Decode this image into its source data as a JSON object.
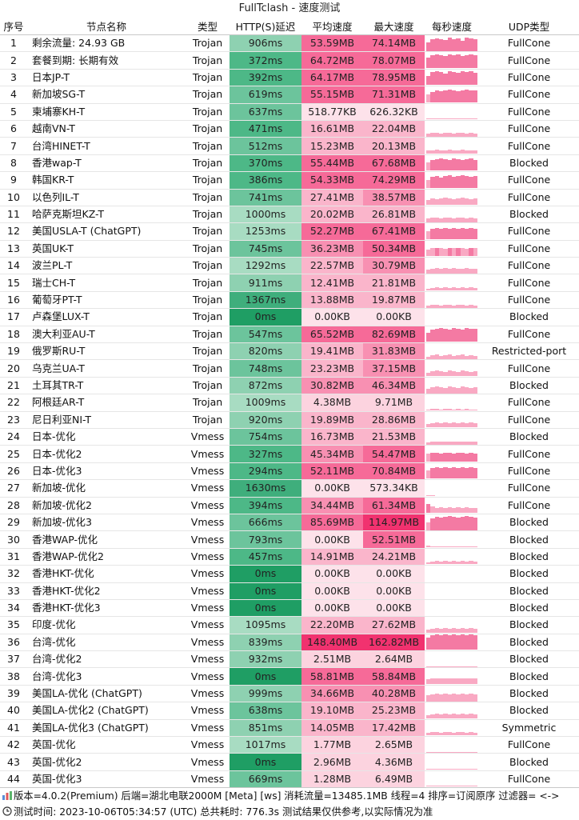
{
  "title": "FullTclash - 速度测试",
  "headers": {
    "idx": "序号",
    "name": "节点名称",
    "type": "类型",
    "delay": "HTTP(S)延迟",
    "avg": "平均速度",
    "max": "最大速度",
    "chart": "每秒速度",
    "udp": "UDP类型"
  },
  "rows": [
    {
      "idx": "1",
      "name": "剩余流量: 24.93 GB",
      "type": "Trojan",
      "delay": "906ms",
      "avg": "53.59MB",
      "max": "74.14MB",
      "udp": "FullCone",
      "spark": [
        0.6,
        0.8,
        0.85,
        0.8,
        0.75,
        0.9,
        0.8,
        0.85,
        0.7,
        0.9,
        0.85,
        0.8
      ]
    },
    {
      "idx": "2",
      "name": "套餐到期: 长期有效",
      "type": "Trojan",
      "delay": "372ms",
      "avg": "64.72MB",
      "max": "78.07MB",
      "udp": "FullCone",
      "spark": [
        0.7,
        0.85,
        0.9,
        0.85,
        0.8,
        0.9,
        0.85,
        0.9,
        0.8,
        0.85,
        0.9,
        0.85
      ]
    },
    {
      "idx": "3",
      "name": "日本JP-T",
      "type": "Trojan",
      "delay": "392ms",
      "avg": "64.17MB",
      "max": "78.95MB",
      "udp": "FullCone",
      "spark": [
        0.6,
        0.85,
        0.9,
        0.85,
        0.75,
        0.9,
        0.85,
        0.8,
        0.9,
        0.85,
        0.9,
        0.8
      ]
    },
    {
      "idx": "4",
      "name": "新加坡SG-T",
      "type": "Trojan",
      "delay": "619ms",
      "avg": "55.15MB",
      "max": "71.31MB",
      "udp": "FullCone",
      "spark": [
        0.5,
        0.7,
        0.8,
        0.75,
        0.8,
        0.85,
        0.8,
        0.75,
        0.8,
        0.85,
        0.8,
        0.8
      ]
    },
    {
      "idx": "5",
      "name": "柬埔寨KH-T",
      "type": "Trojan",
      "delay": "637ms",
      "avg": "518.77KB",
      "max": "626.32KB",
      "udp": "FullCone",
      "spark": [
        0.05,
        0.05,
        0.05,
        0.05,
        0.05,
        0.05,
        0.05,
        0.05,
        0.05,
        0.05,
        0.05,
        0.05
      ]
    },
    {
      "idx": "6",
      "name": "越南VN-T",
      "type": "Trojan",
      "delay": "471ms",
      "avg": "16.61MB",
      "max": "22.04MB",
      "udp": "FullCone",
      "spark": [
        0.2,
        0.25,
        0.25,
        0.2,
        0.25,
        0.25,
        0.2,
        0.25,
        0.25,
        0.2,
        0.25,
        0.2
      ]
    },
    {
      "idx": "7",
      "name": "台湾HINET-T",
      "type": "Trojan",
      "delay": "512ms",
      "avg": "15.23MB",
      "max": "20.13MB",
      "udp": "FullCone",
      "spark": [
        0.2,
        0.2,
        0.25,
        0.2,
        0.2,
        0.25,
        0.2,
        0.2,
        0.25,
        0.2,
        0.2,
        0.2
      ]
    },
    {
      "idx": "8",
      "name": "香港wap-T",
      "type": "Trojan",
      "delay": "370ms",
      "avg": "55.44MB",
      "max": "67.68MB",
      "udp": "Blocked",
      "spark": [
        0.5,
        0.7,
        0.75,
        0.8,
        0.75,
        0.7,
        0.8,
        0.75,
        0.7,
        0.75,
        0.8,
        0.7
      ]
    },
    {
      "idx": "9",
      "name": "韩国KR-T",
      "type": "Trojan",
      "delay": "386ms",
      "avg": "54.33MB",
      "max": "74.29MB",
      "udp": "FullCone",
      "spark": [
        0.5,
        0.75,
        0.8,
        0.7,
        0.8,
        0.85,
        0.75,
        0.8,
        0.85,
        0.8,
        0.75,
        0.8
      ]
    },
    {
      "idx": "10",
      "name": "以色列IL-T",
      "type": "Trojan",
      "delay": "741ms",
      "avg": "27.41MB",
      "max": "38.57MB",
      "udp": "FullCone",
      "spark": [
        0.3,
        0.4,
        0.35,
        0.4,
        0.45,
        0.4,
        0.35,
        0.4,
        0.45,
        0.4,
        0.35,
        0.4
      ]
    },
    {
      "idx": "11",
      "name": "哈萨克斯坦KZ-T",
      "type": "Trojan",
      "delay": "1000ms",
      "avg": "20.02MB",
      "max": "26.81MB",
      "udp": "Blocked",
      "spark": [
        0.25,
        0.3,
        0.3,
        0.25,
        0.3,
        0.3,
        0.25,
        0.3,
        0.3,
        0.25,
        0.3,
        0.25
      ]
    },
    {
      "idx": "12",
      "name": "美国USLA-T (ChatGPT)",
      "type": "Trojan",
      "delay": "1253ms",
      "avg": "52.27MB",
      "max": "67.41MB",
      "udp": "FullCone",
      "spark": [
        0.5,
        0.7,
        0.75,
        0.7,
        0.75,
        0.7,
        0.75,
        0.7,
        0.75,
        0.7,
        0.75,
        0.7
      ]
    },
    {
      "idx": "13",
      "name": "英国UK-T",
      "type": "Trojan",
      "delay": "745ms",
      "avg": "36.23MB",
      "max": "50.34MB",
      "udp": "FullCone",
      "spark": [
        0.4,
        0.5,
        0.55,
        0.5,
        0.45,
        0.55,
        0.5,
        0.55,
        0.5,
        0.45,
        0.55,
        0.5
      ]
    },
    {
      "idx": "14",
      "name": "波兰PL-T",
      "type": "Trojan",
      "delay": "1292ms",
      "avg": "22.57MB",
      "max": "30.79MB",
      "udp": "FullCone",
      "spark": [
        0.25,
        0.3,
        0.35,
        0.3,
        0.35,
        0.3,
        0.35,
        0.3,
        0.3,
        0.35,
        0.3,
        0.3
      ]
    },
    {
      "idx": "15",
      "name": "瑞士CH-T",
      "type": "Trojan",
      "delay": "911ms",
      "avg": "12.41MB",
      "max": "21.81MB",
      "udp": "FullCone",
      "spark": [
        0.1,
        0.15,
        0.2,
        0.15,
        0.2,
        0.15,
        0.2,
        0.15,
        0.2,
        0.15,
        0.2,
        0.15
      ]
    },
    {
      "idx": "16",
      "name": "葡萄牙PT-T",
      "type": "Trojan",
      "delay": "1367ms",
      "avg": "13.88MB",
      "max": "19.87MB",
      "udp": "FullCone",
      "spark": [
        0.15,
        0.2,
        0.2,
        0.15,
        0.2,
        0.2,
        0.15,
        0.2,
        0.2,
        0.15,
        0.2,
        0.15
      ]
    },
    {
      "idx": "17",
      "name": "卢森堡LUX-T",
      "type": "Trojan",
      "delay": "0ms",
      "avg": "0.00KB",
      "max": "0.00KB",
      "udp": "Blocked",
      "spark": []
    },
    {
      "idx": "18",
      "name": "澳大利亚AU-T",
      "type": "Trojan",
      "delay": "547ms",
      "avg": "65.52MB",
      "max": "82.69MB",
      "udp": "FullCone",
      "spark": [
        0.6,
        0.8,
        0.85,
        0.9,
        0.85,
        0.8,
        0.9,
        0.85,
        0.8,
        0.9,
        0.85,
        0.85
      ]
    },
    {
      "idx": "19",
      "name": "俄罗斯RU-T",
      "type": "Trojan",
      "delay": "820ms",
      "avg": "19.41MB",
      "max": "31.83MB",
      "udp": "Restricted-port",
      "spark": [
        0.15,
        0.25,
        0.3,
        0.2,
        0.25,
        0.3,
        0.2,
        0.25,
        0.3,
        0.2,
        0.25,
        0.2
      ]
    },
    {
      "idx": "20",
      "name": "乌克兰UA-T",
      "type": "Trojan",
      "delay": "748ms",
      "avg": "23.23MB",
      "max": "37.15MB",
      "udp": "FullCone",
      "spark": [
        0.2,
        0.3,
        0.35,
        0.3,
        0.25,
        0.35,
        0.3,
        0.25,
        0.35,
        0.3,
        0.25,
        0.3
      ]
    },
    {
      "idx": "21",
      "name": "土耳其TR-T",
      "type": "Trojan",
      "delay": "872ms",
      "avg": "30.82MB",
      "max": "46.34MB",
      "udp": "Blocked",
      "spark": [
        0.3,
        0.4,
        0.45,
        0.4,
        0.35,
        0.45,
        0.4,
        0.35,
        0.45,
        0.4,
        0.35,
        0.4
      ]
    },
    {
      "idx": "22",
      "name": "阿根廷AR-T",
      "type": "Trojan",
      "delay": "1009ms",
      "avg": "4.38MB",
      "max": "9.71MB",
      "udp": "FullCone",
      "spark": [
        0.05,
        0.08,
        0.1,
        0.06,
        0.08,
        0.1,
        0.06,
        0.08,
        0.05,
        0.08,
        0.06,
        0.05
      ]
    },
    {
      "idx": "23",
      "name": "尼日利亚NI-T",
      "type": "Trojan",
      "delay": "920ms",
      "avg": "19.89MB",
      "max": "28.86MB",
      "udp": "FullCone",
      "spark": [
        0.2,
        0.25,
        0.3,
        0.25,
        0.3,
        0.25,
        0.3,
        0.25,
        0.3,
        0.25,
        0.3,
        0.25
      ]
    },
    {
      "idx": "24",
      "name": "日本-优化",
      "type": "Vmess",
      "delay": "754ms",
      "avg": "16.73MB",
      "max": "21.53MB",
      "udp": "Blocked",
      "spark": [
        0.15,
        0.2,
        0.2,
        0.2,
        0.2,
        0.2,
        0.2,
        0.2,
        0.2,
        0.2,
        0.2,
        0.2
      ]
    },
    {
      "idx": "25",
      "name": "日本-优化2",
      "type": "Vmess",
      "delay": "327ms",
      "avg": "45.34MB",
      "max": "54.47MB",
      "udp": "FullCone",
      "spark": [
        0.5,
        0.6,
        0.6,
        0.55,
        0.6,
        0.6,
        0.55,
        0.6,
        0.6,
        0.55,
        0.6,
        0.55
      ]
    },
    {
      "idx": "26",
      "name": "日本-优化3",
      "type": "Vmess",
      "delay": "294ms",
      "avg": "52.11MB",
      "max": "70.84MB",
      "udp": "FullCone",
      "spark": [
        0.5,
        0.7,
        0.75,
        0.7,
        0.75,
        0.7,
        0.75,
        0.7,
        0.75,
        0.7,
        0.75,
        0.7
      ]
    },
    {
      "idx": "27",
      "name": "新加坡-优化",
      "type": "Vmess",
      "delay": "1630ms",
      "avg": "0.00KB",
      "max": "573.34KB",
      "udp": "FullCone",
      "spark": [
        0.05,
        0.04,
        0,
        0,
        0,
        0,
        0,
        0,
        0,
        0,
        0,
        0
      ]
    },
    {
      "idx": "28",
      "name": "新加坡-优化2",
      "type": "Vmess",
      "delay": "394ms",
      "avg": "34.44MB",
      "max": "61.34MB",
      "udp": "FullCone",
      "spark": [
        0.6,
        0.4,
        0.3,
        0.35,
        0.3,
        0.35,
        0.3,
        0.35,
        0.3,
        0.35,
        0.3,
        0.3
      ]
    },
    {
      "idx": "29",
      "name": "新加坡-优化3",
      "type": "Vmess",
      "delay": "666ms",
      "avg": "85.69MB",
      "max": "114.97MB",
      "udp": "Blocked",
      "spark": [
        0.5,
        0.8,
        0.9,
        0.85,
        0.9,
        0.95,
        0.9,
        0.85,
        0.9,
        0.95,
        0.9,
        0.85
      ]
    },
    {
      "idx": "30",
      "name": "香港WAP-优化",
      "type": "Vmess",
      "delay": "793ms",
      "avg": "0.00KB",
      "max": "52.51MB",
      "udp": "Blocked",
      "spark": [
        0.1,
        0.05,
        0.05,
        0.05,
        0.05,
        0.05,
        0.05,
        0.05,
        0.05,
        0.05,
        0.05,
        0.05
      ]
    },
    {
      "idx": "31",
      "name": "香港WAP-优化2",
      "type": "Vmess",
      "delay": "457ms",
      "avg": "14.91MB",
      "max": "24.21MB",
      "udp": "Blocked",
      "spark": [
        0.1,
        0.15,
        0.2,
        0.15,
        0.2,
        0.15,
        0.2,
        0.15,
        0.2,
        0.15,
        0.2,
        0.15
      ]
    },
    {
      "idx": "32",
      "name": "香港HKT-优化",
      "type": "Vmess",
      "delay": "0ms",
      "avg": "0.00KB",
      "max": "0.00KB",
      "udp": "Blocked",
      "spark": []
    },
    {
      "idx": "33",
      "name": "香港HKT-优化2",
      "type": "Vmess",
      "delay": "0ms",
      "avg": "0.00KB",
      "max": "0.00KB",
      "udp": "Blocked",
      "spark": []
    },
    {
      "idx": "34",
      "name": "香港HKT-优化3",
      "type": "Vmess",
      "delay": "0ms",
      "avg": "0.00KB",
      "max": "0.00KB",
      "udp": "Blocked",
      "spark": []
    },
    {
      "idx": "35",
      "name": "印度-优化",
      "type": "Vmess",
      "delay": "1095ms",
      "avg": "22.20MB",
      "max": "27.62MB",
      "udp": "Blocked",
      "spark": [
        0.2,
        0.25,
        0.3,
        0.25,
        0.3,
        0.25,
        0.3,
        0.25,
        0.3,
        0.25,
        0.3,
        0.25
      ]
    },
    {
      "idx": "36",
      "name": "台湾-优化",
      "type": "Vmess",
      "delay": "839ms",
      "avg": "148.40MB",
      "max": "162.82MB",
      "udp": "Blocked",
      "spark": [
        0.8,
        0.95,
        1,
        0.95,
        1,
        0.95,
        1,
        0.95,
        1,
        0.95,
        1,
        0.95
      ]
    },
    {
      "idx": "37",
      "name": "台湾-优化2",
      "type": "Vmess",
      "delay": "932ms",
      "avg": "2.51MB",
      "max": "2.64MB",
      "udp": "Blocked",
      "spark": [
        0.04,
        0.04,
        0.04,
        0.04,
        0.04,
        0.04,
        0.04,
        0.04,
        0.04,
        0.04,
        0.04,
        0.04
      ]
    },
    {
      "idx": "38",
      "name": "台湾-优化3",
      "type": "Vmess",
      "delay": "0ms",
      "avg": "58.81MB",
      "max": "58.84MB",
      "udp": "Blocked",
      "spark": [
        0.3,
        0.35,
        0.35,
        0.35,
        0.35,
        0.35,
        0.35,
        0.35,
        0.35,
        0.35,
        0.35,
        0.35
      ]
    },
    {
      "idx": "39",
      "name": "美国LA-优化 (ChatGPT)",
      "type": "Vmess",
      "delay": "999ms",
      "avg": "34.66MB",
      "max": "40.28MB",
      "udp": "Blocked",
      "spark": [
        0.4,
        0.45,
        0.5,
        0.45,
        0.5,
        0.45,
        0.5,
        0.45,
        0.5,
        0.45,
        0.5,
        0.45
      ]
    },
    {
      "idx": "40",
      "name": "美国LA-优化2 (ChatGPT)",
      "type": "Vmess",
      "delay": "638ms",
      "avg": "19.10MB",
      "max": "25.23MB",
      "udp": "Blocked",
      "spark": [
        0.2,
        0.25,
        0.3,
        0.25,
        0.3,
        0.25,
        0.3,
        0.25,
        0.3,
        0.25,
        0.3,
        0.25
      ]
    },
    {
      "idx": "41",
      "name": "美国LA-优化3 (ChatGPT)",
      "type": "Vmess",
      "delay": "851ms",
      "avg": "14.05MB",
      "max": "17.42MB",
      "udp": "Symmetric",
      "spark": [
        0.15,
        0.2,
        0.2,
        0.15,
        0.2,
        0.2,
        0.15,
        0.2,
        0.2,
        0.15,
        0.2,
        0.15
      ]
    },
    {
      "idx": "42",
      "name": "英国-优化",
      "type": "Vmess",
      "delay": "1017ms",
      "avg": "1.77MB",
      "max": "2.65MB",
      "udp": "FullCone",
      "spark": [
        0.03,
        0.04,
        0.03,
        0.04,
        0.03,
        0.04,
        0.03,
        0.04,
        0.03,
        0.04,
        0.03,
        0.03
      ]
    },
    {
      "idx": "43",
      "name": "英国-优化2",
      "type": "Vmess",
      "delay": "0ms",
      "avg": "2.96MB",
      "max": "4.36MB",
      "udp": "Blocked",
      "spark": [
        0.04,
        0.05,
        0.04,
        0.05,
        0.04,
        0.05,
        0.04,
        0.05,
        0.04,
        0.05,
        0.04,
        0.04
      ]
    },
    {
      "idx": "44",
      "name": "英国-优化3",
      "type": "Vmess",
      "delay": "669ms",
      "avg": "1.28MB",
      "max": "6.49MB",
      "udp": "FullCone",
      "spark": [
        0.04,
        0.06,
        0.05,
        0.04,
        0.06,
        0.05,
        0.04,
        0.06,
        0.05,
        0.04,
        0.05,
        0.04
      ]
    }
  ],
  "footer": {
    "line1": "版本=4.0.2(Premium)  后端=湖北电联2000M [Meta] [ws]  消耗流量=13485.1MB  线程=4  排序=订阅原序  过滤器= <->",
    "line2": "测试时间: 2023-10-06T05:34:57 (UTC) 总共耗时: 776.3s 测试结果仅供参考,以实际情况为准"
  }
}
